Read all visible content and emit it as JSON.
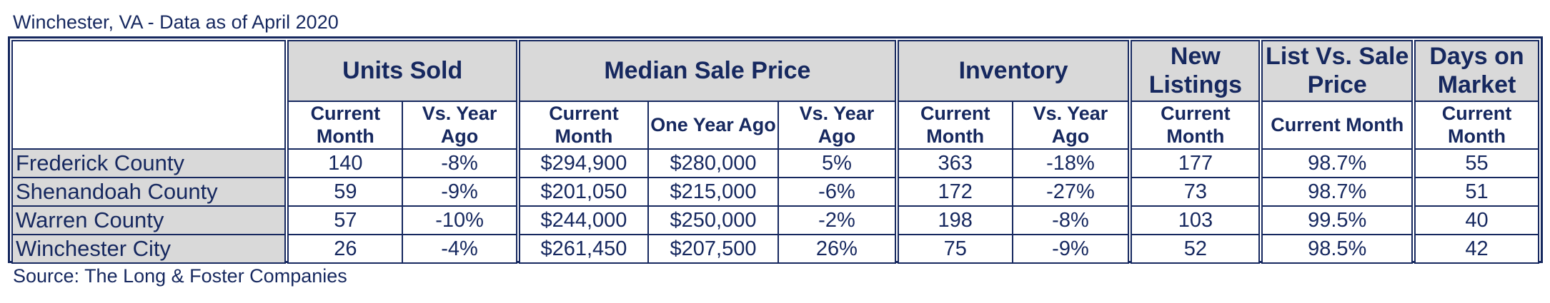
{
  "title": "Winchester, VA - Data as of April 2020",
  "source": "Source: The Long & Foster Companies",
  "headers": {
    "units_sold": "Units Sold",
    "median_sale_price": "Median Sale Price",
    "inventory": "Inventory",
    "new_listings": "New Listings",
    "list_vs_sale": "List Vs. Sale Price",
    "days_on_market": "Days on Market",
    "current_month": "Current Month",
    "vs_year_ago": "Vs. Year Ago",
    "one_year_ago": "One Year Ago"
  },
  "rows": [
    {
      "region": "Frederick County",
      "units_current": "140",
      "units_vs": "-8%",
      "price_current": "$294,900",
      "price_year_ago": "$280,000",
      "price_vs": "5%",
      "inv_current": "363",
      "inv_vs": "-18%",
      "new_listings": "177",
      "list_vs_sale": "98.7%",
      "dom": "55"
    },
    {
      "region": "Shenandoah County",
      "units_current": "59",
      "units_vs": "-9%",
      "price_current": "$201,050",
      "price_year_ago": "$215,000",
      "price_vs": "-6%",
      "inv_current": "172",
      "inv_vs": "-27%",
      "new_listings": "73",
      "list_vs_sale": "98.7%",
      "dom": "51"
    },
    {
      "region": "Warren County",
      "units_current": "57",
      "units_vs": "-10%",
      "price_current": "$244,000",
      "price_year_ago": "$250,000",
      "price_vs": "-2%",
      "inv_current": "198",
      "inv_vs": "-8%",
      "new_listings": "103",
      "list_vs_sale": "99.5%",
      "dom": "40"
    },
    {
      "region": "Winchester City",
      "units_current": "26",
      "units_vs": "-4%",
      "price_current": "$261,450",
      "price_year_ago": "$207,500",
      "price_vs": "26%",
      "inv_current": "75",
      "inv_vs": "-9%",
      "new_listings": "52",
      "list_vs_sale": "98.5%",
      "dom": "42"
    }
  ],
  "colors": {
    "text": "#16285f",
    "header_fill": "#d9d9d9",
    "border": "#16285f"
  }
}
